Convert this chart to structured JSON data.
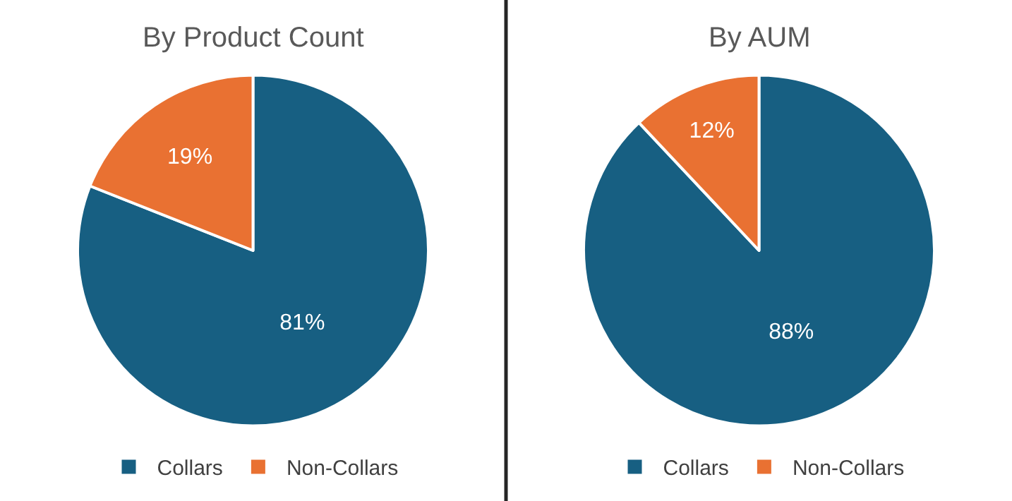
{
  "chart_data": [
    {
      "type": "pie",
      "title": "By Product Count",
      "categories": [
        "Collars",
        "Non-Collars"
      ],
      "values": [
        81,
        19
      ],
      "colors": [
        "#175f82",
        "#e97132"
      ],
      "value_labels": [
        "81%",
        "19%"
      ],
      "legend": "bottom"
    },
    {
      "type": "pie",
      "title": "By AUM",
      "categories": [
        "Collars",
        "Non-Collars"
      ],
      "values": [
        88,
        12
      ],
      "colors": [
        "#175f82",
        "#e97132"
      ],
      "value_labels": [
        "88%",
        "12%"
      ],
      "legend": "bottom"
    }
  ]
}
